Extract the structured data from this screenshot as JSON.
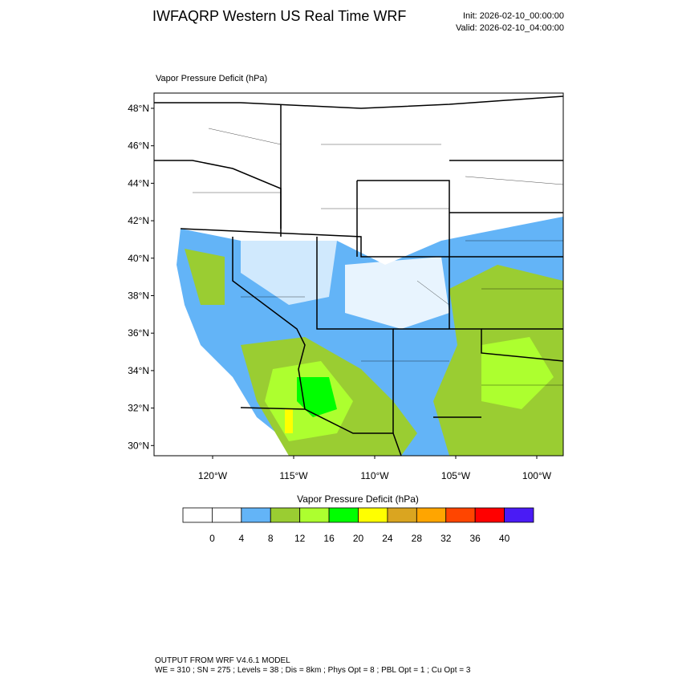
{
  "title": "IWFAQRP Western US Real Time WRF",
  "init": "Init: 2026-02-10_00:00:00",
  "valid": "Valid: 2026-02-10_04:00:00",
  "map": {
    "label": "Vapor Pressure Deficit   (hPa)",
    "lat_labels": [
      "48°N",
      "46°N",
      "44°N",
      "42°N",
      "40°N",
      "38°N",
      "36°N",
      "34°N",
      "32°N",
      "30°N"
    ],
    "lon_labels": [
      "120°W",
      "115°W",
      "110°W",
      "105°W",
      "100°W"
    ]
  },
  "colorbar": {
    "title": "Vapor Pressure Deficit  (hPa)",
    "colors": [
      "#ffffff",
      "#ffffff",
      "#63b4f7",
      "#9acd32",
      "#adff2f",
      "#00ff00",
      "#ffff00",
      "#daa520",
      "#ffa500",
      "#ff4500",
      "#ff0000",
      "#4a1bf5"
    ],
    "labels": [
      0,
      4,
      8,
      12,
      16,
      20,
      24,
      28,
      32,
      36,
      40
    ]
  },
  "footer": {
    "line1": "OUTPUT FROM WRF V4.6.1 MODEL",
    "line2": "WE = 310 ; SN = 275 ; Levels = 38 ; Dis = 8km ; Phys Opt = 8 ; PBL Opt = 1 ; Cu Opt = 3"
  }
}
